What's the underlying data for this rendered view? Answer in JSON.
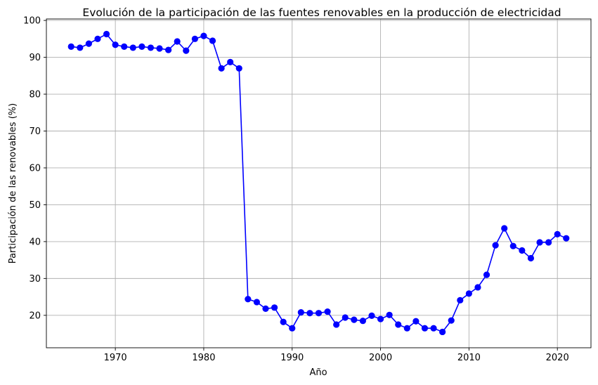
{
  "chart_data": {
    "type": "line",
    "title": "Evolución de la participación de las fuentes renovables en la producción de electricidad",
    "xlabel": "Año",
    "ylabel": "Participación de las renovables (%)",
    "xlim": [
      1962.2,
      2023.8
    ],
    "ylim": [
      11.2,
      100.4
    ],
    "xticks": [
      1970,
      1980,
      1990,
      2000,
      2010,
      2020
    ],
    "yticks": [
      20,
      30,
      40,
      50,
      60,
      70,
      80,
      90,
      100
    ],
    "grid": true,
    "line_color": "#0000ff",
    "marker": "circle",
    "series": [
      {
        "x": [
          1965,
          1966,
          1967,
          1968,
          1969,
          1970,
          1971,
          1972,
          1973,
          1974,
          1975,
          1976,
          1977,
          1978,
          1979,
          1980,
          1981,
          1982,
          1983,
          1984,
          1985,
          1986,
          1987,
          1988,
          1989,
          1990,
          1991,
          1992,
          1993,
          1994,
          1995,
          1996,
          1997,
          1998,
          1999,
          2000,
          2001,
          2002,
          2003,
          2004,
          2005,
          2006,
          2007,
          2008,
          2009,
          2010,
          2011,
          2012,
          2013,
          2014,
          2015,
          2016,
          2017,
          2018,
          2019,
          2020,
          2021
        ],
        "values": [
          92.9,
          92.6,
          93.7,
          95.0,
          96.3,
          93.4,
          92.9,
          92.6,
          92.9,
          92.6,
          92.4,
          92.0,
          94.3,
          91.8,
          95.0,
          95.8,
          94.5,
          87.0,
          88.7,
          87.0,
          24.4,
          23.6,
          21.8,
          22.1,
          18.2,
          16.5,
          20.8,
          20.6,
          20.6,
          21.0,
          17.5,
          19.4,
          18.8,
          18.5,
          19.9,
          19.0,
          20.1,
          17.5,
          16.5,
          18.4,
          16.5,
          16.5,
          15.5,
          18.6,
          24.1,
          25.9,
          27.6,
          31.0,
          39.0,
          43.6,
          38.8,
          37.6,
          35.5,
          39.8,
          39.8,
          42.0,
          40.9
        ]
      }
    ]
  }
}
